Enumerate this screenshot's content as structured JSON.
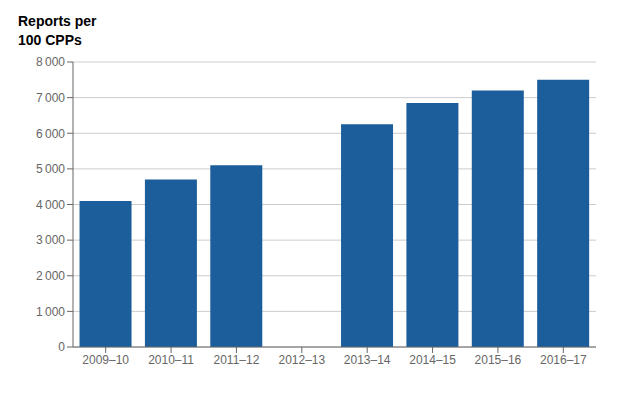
{
  "chart_data": {
    "type": "bar",
    "ylabel": [
      "Reports per",
      "100 CPPs"
    ],
    "categories": [
      "2009–10",
      "2010–11",
      "2011–12",
      "2012–13",
      "2013–14",
      "2014–15",
      "2015–16",
      "2016–17"
    ],
    "values": [
      4100,
      4700,
      5100,
      0,
      6250,
      6850,
      7200,
      7500
    ],
    "color": "#1B5E9B",
    "ylim": [
      0,
      8000
    ],
    "yticks": [
      0,
      {
        "value": 1000,
        "label": "1 000"
      },
      {
        "value": 2000,
        "label": "2 000"
      },
      {
        "value": 3000,
        "label": "3 000"
      },
      {
        "value": 4000,
        "label": "4 000"
      },
      {
        "value": 5000,
        "label": "5 000"
      },
      {
        "value": 6000,
        "label": "6 000"
      },
      {
        "value": 7000,
        "label": "7 000"
      },
      {
        "value": 8000,
        "label": "8 000"
      }
    ],
    "grid": true
  }
}
